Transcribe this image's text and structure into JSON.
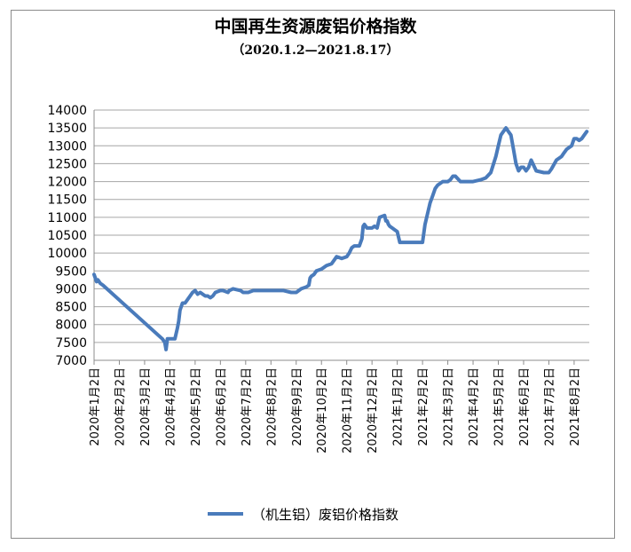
{
  "chart_data": {
    "type": "line",
    "title": "中国再生资源废铝价格指数",
    "subtitle": "（2020.1.2—2021.8.17）",
    "ylim": [
      7000,
      14000
    ],
    "yticks": [
      7000,
      7500,
      8000,
      8500,
      9000,
      9500,
      10000,
      10500,
      11000,
      11500,
      12000,
      12500,
      13000,
      13500,
      14000
    ],
    "xlim": [
      0,
      19.6
    ],
    "xticks": [
      {
        "pos": 0,
        "label": "2020年1月2日"
      },
      {
        "pos": 1,
        "label": "2020年2月2日"
      },
      {
        "pos": 2,
        "label": "2020年3月2日"
      },
      {
        "pos": 3,
        "label": "2020年4月2日"
      },
      {
        "pos": 4,
        "label": "2020年5月2日"
      },
      {
        "pos": 5,
        "label": "2020年6月2日"
      },
      {
        "pos": 6,
        "label": "2020年7月2日"
      },
      {
        "pos": 7,
        "label": "2020年8月2日"
      },
      {
        "pos": 8,
        "label": "2020年9月2日"
      },
      {
        "pos": 9,
        "label": "2020年10月2日"
      },
      {
        "pos": 10,
        "label": "2020年11月2日"
      },
      {
        "pos": 11,
        "label": "2020年12月2日"
      },
      {
        "pos": 12,
        "label": "2021年1月2日"
      },
      {
        "pos": 13,
        "label": "2021年2月2日"
      },
      {
        "pos": 14,
        "label": "2021年3月2日"
      },
      {
        "pos": 15,
        "label": "2021年4月2日"
      },
      {
        "pos": 16,
        "label": "2021年5月2日"
      },
      {
        "pos": 17,
        "label": "2021年6月2日"
      },
      {
        "pos": 18,
        "label": "2021年7月2日"
      },
      {
        "pos": 19,
        "label": "2021年8月2日"
      }
    ],
    "grid": true,
    "legend_position": "bottom",
    "series": [
      {
        "name": "（机生铝）废铝价格指数",
        "color": "#4a7bbb",
        "x": [
          0,
          0.05,
          0.1,
          0.15,
          0.25,
          0.35,
          2.7,
          2.8,
          2.85,
          2.9,
          3.0,
          3.2,
          3.3,
          3.35,
          3.4,
          3.5,
          3.6,
          3.8,
          3.9,
          4.0,
          4.1,
          4.2,
          4.3,
          4.4,
          4.5,
          4.6,
          4.7,
          4.8,
          5.0,
          5.1,
          5.3,
          5.35,
          5.5,
          5.8,
          5.9,
          6.0,
          6.1,
          6.3,
          6.5,
          7.0,
          7.5,
          7.8,
          8.0,
          8.2,
          8.4,
          8.5,
          8.55,
          8.6,
          8.7,
          8.8,
          9.0,
          9.2,
          9.4,
          9.5,
          9.6,
          9.8,
          10.0,
          10.1,
          10.2,
          10.3,
          10.5,
          10.6,
          10.65,
          10.7,
          10.8,
          11.0,
          11.1,
          11.2,
          11.3,
          11.5,
          11.55,
          11.6,
          11.65,
          11.7,
          11.8,
          11.9,
          12.0,
          12.1,
          12.3,
          12.5,
          12.8,
          13.0,
          13.1,
          13.3,
          13.4,
          13.5,
          13.6,
          13.8,
          14.0,
          14.1,
          14.2,
          14.3,
          14.5,
          14.8,
          15.0,
          15.3,
          15.5,
          15.7,
          15.9,
          16.0,
          16.1,
          16.3,
          16.4,
          16.5,
          16.6,
          16.7,
          16.8,
          16.9,
          17.0,
          17.1,
          17.2,
          17.3,
          17.5,
          17.8,
          18.0,
          18.1,
          18.3,
          18.5,
          18.6,
          18.7,
          18.9,
          19.0,
          19.1,
          19.2,
          19.3,
          19.35,
          19.4,
          19.5
        ],
        "y": [
          9400,
          9300,
          9200,
          9250,
          9150,
          9100,
          7600,
          7500,
          7300,
          7600,
          7600,
          7600,
          7900,
          8100,
          8400,
          8600,
          8600,
          8800,
          8900,
          8950,
          8850,
          8900,
          8850,
          8800,
          8800,
          8750,
          8800,
          8900,
          8950,
          8950,
          8900,
          8950,
          9000,
          8950,
          8900,
          8900,
          8900,
          8950,
          8950,
          8950,
          8950,
          8900,
          8900,
          9000,
          9050,
          9100,
          9300,
          9350,
          9400,
          9500,
          9550,
          9650,
          9700,
          9800,
          9900,
          9850,
          9900,
          10000,
          10150,
          10200,
          10200,
          10400,
          10750,
          10800,
          10700,
          10700,
          10750,
          10700,
          11000,
          11050,
          10900,
          10900,
          10800,
          10750,
          10700,
          10650,
          10600,
          10300,
          10300,
          10300,
          10300,
          10300,
          10800,
          11400,
          11600,
          11800,
          11900,
          12000,
          12000,
          12050,
          12150,
          12150,
          12000,
          12000,
          12000,
          12050,
          12100,
          12250,
          12700,
          13000,
          13300,
          13500,
          13400,
          13300,
          12900,
          12500,
          12300,
          12400,
          12400,
          12300,
          12400,
          12600,
          12300,
          12250,
          12250,
          12350,
          12600,
          12700,
          12800,
          12900,
          13000,
          13200,
          13200,
          13150,
          13200,
          13250,
          13300,
          13400
        ]
      }
    ]
  }
}
